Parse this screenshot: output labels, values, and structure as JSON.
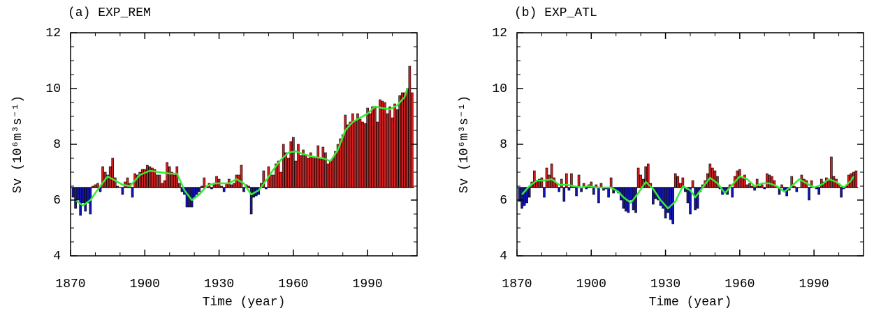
{
  "chart_data": [
    {
      "type": "bar",
      "title": "(a) EXP_REM",
      "xlabel": "Time (year)",
      "ylabel": "Sv (10⁶m³s⁻¹)",
      "x": [
        1871,
        1872,
        1873,
        1874,
        1875,
        1876,
        1877,
        1878,
        1879,
        1880,
        1881,
        1882,
        1883,
        1884,
        1885,
        1886,
        1887,
        1888,
        1889,
        1890,
        1891,
        1892,
        1893,
        1894,
        1895,
        1896,
        1897,
        1898,
        1899,
        1900,
        1901,
        1902,
        1903,
        1904,
        1905,
        1906,
        1907,
        1908,
        1909,
        1910,
        1911,
        1912,
        1913,
        1914,
        1915,
        1916,
        1917,
        1918,
        1919,
        1920,
        1921,
        1922,
        1923,
        1924,
        1925,
        1926,
        1927,
        1928,
        1929,
        1930,
        1931,
        1932,
        1933,
        1934,
        1935,
        1936,
        1937,
        1938,
        1939,
        1940,
        1941,
        1942,
        1943,
        1944,
        1945,
        1946,
        1947,
        1948,
        1949,
        1950,
        1951,
        1952,
        1953,
        1954,
        1955,
        1956,
        1957,
        1958,
        1959,
        1960,
        1961,
        1962,
        1963,
        1964,
        1965,
        1966,
        1967,
        1968,
        1969,
        1970,
        1971,
        1972,
        1973,
        1974,
        1975,
        1976,
        1977,
        1978,
        1979,
        1980,
        1981,
        1982,
        1983,
        1984,
        1985,
        1986,
        1987,
        1988,
        1989,
        1990,
        1991,
        1992,
        1993,
        1994,
        1995,
        1996,
        1997,
        1998,
        1999,
        2000,
        2001,
        2002,
        2003,
        2004,
        2005,
        2006,
        2007,
        2008
      ],
      "values": [
        6.1,
        5.7,
        6.0,
        5.45,
        5.9,
        5.6,
        5.9,
        5.5,
        6.5,
        6.55,
        6.6,
        6.3,
        7.2,
        7.0,
        6.9,
        7.2,
        7.5,
        6.8,
        6.5,
        6.45,
        6.2,
        6.65,
        6.8,
        6.6,
        6.1,
        6.95,
        6.9,
        7.0,
        7.1,
        7.1,
        7.25,
        7.2,
        7.15,
        7.1,
        6.9,
        6.9,
        6.6,
        6.7,
        7.35,
        7.2,
        7.0,
        6.9,
        7.2,
        6.6,
        6.3,
        6.2,
        5.75,
        5.75,
        5.75,
        6.1,
        6.2,
        6.3,
        6.5,
        6.8,
        6.5,
        6.6,
        6.4,
        6.55,
        6.85,
        6.75,
        6.5,
        6.3,
        6.6,
        6.75,
        6.55,
        6.6,
        6.9,
        6.9,
        7.25,
        6.3,
        6.55,
        6.5,
        5.5,
        6.1,
        6.15,
        6.2,
        6.6,
        7.05,
        6.4,
        7.2,
        6.9,
        6.9,
        7.3,
        7.4,
        7.0,
        8.0,
        7.7,
        7.5,
        8.1,
        8.25,
        7.4,
        8.0,
        7.6,
        7.8,
        7.6,
        7.5,
        7.7,
        7.55,
        7.55,
        7.95,
        7.5,
        7.9,
        7.7,
        7.3,
        7.4,
        7.5,
        7.75,
        8.0,
        8.2,
        8.35,
        9.05,
        8.7,
        8.8,
        9.1,
        8.85,
        9.1,
        8.9,
        8.8,
        8.75,
        9.3,
        9.1,
        9.35,
        9.35,
        8.8,
        9.6,
        9.55,
        9.5,
        9.1,
        9.35,
        8.95,
        9.45,
        9.25,
        9.75,
        9.85,
        9.85,
        10.0,
        10.8,
        9.85
      ],
      "baseline": 6.45,
      "positive_color": "#d02020",
      "negative_color": "#1414b4",
      "smooth": {
        "color": "#33ee33",
        "x": [
          1872,
          1875,
          1878,
          1882,
          1885,
          1888,
          1891,
          1894,
          1898,
          1902,
          1906,
          1910,
          1913,
          1916,
          1919,
          1922,
          1925,
          1928,
          1931,
          1934,
          1937,
          1940,
          1943,
          1946,
          1949,
          1952,
          1955,
          1958,
          1961,
          1964,
          1968,
          1972,
          1975,
          1978,
          1981,
          1984,
          1987,
          1990,
          1993,
          1996,
          1999,
          2002,
          2005,
          2006
        ],
        "values": [
          6.0,
          5.8,
          6.0,
          6.5,
          6.85,
          6.7,
          6.55,
          6.5,
          6.9,
          7.05,
          7.0,
          6.95,
          6.95,
          6.35,
          6.0,
          6.2,
          6.5,
          6.6,
          6.6,
          6.6,
          6.75,
          6.6,
          6.2,
          6.35,
          6.7,
          7.1,
          7.45,
          7.7,
          7.75,
          7.65,
          7.55,
          7.5,
          7.4,
          7.8,
          8.5,
          8.8,
          8.95,
          9.1,
          9.35,
          9.3,
          9.25,
          9.4,
          9.7,
          10.0
        ]
      },
      "xlim": [
        1870,
        2010
      ],
      "ylim": [
        4,
        12
      ],
      "xticks": [
        1870,
        1900,
        1930,
        1960,
        1990
      ],
      "yticks": [
        4,
        6,
        8,
        10,
        12
      ],
      "xminor": [
        1880,
        1890,
        1910,
        1920,
        1940,
        1950,
        1970,
        1980,
        2000
      ],
      "yminor": [
        4.5,
        5,
        5.5,
        6.5,
        7,
        7.5,
        8.5,
        9,
        9.5,
        10.5,
        11,
        11.5
      ]
    },
    {
      "type": "bar",
      "title": "(b) EXP_ATL",
      "xlabel": "Time (year)",
      "ylabel": "Sv (10⁶m³s⁻¹)",
      "x": [
        1871,
        1872,
        1873,
        1874,
        1875,
        1876,
        1877,
        1878,
        1879,
        1880,
        1881,
        1882,
        1883,
        1884,
        1885,
        1886,
        1887,
        1888,
        1889,
        1890,
        1891,
        1892,
        1893,
        1894,
        1895,
        1896,
        1897,
        1898,
        1899,
        1900,
        1901,
        1902,
        1903,
        1904,
        1905,
        1906,
        1907,
        1908,
        1909,
        1910,
        1911,
        1912,
        1913,
        1914,
        1915,
        1916,
        1917,
        1918,
        1919,
        1920,
        1921,
        1922,
        1923,
        1924,
        1925,
        1926,
        1927,
        1928,
        1929,
        1930,
        1931,
        1932,
        1933,
        1934,
        1935,
        1936,
        1937,
        1938,
        1939,
        1940,
        1941,
        1942,
        1943,
        1944,
        1945,
        1946,
        1947,
        1948,
        1949,
        1950,
        1951,
        1952,
        1953,
        1954,
        1955,
        1956,
        1957,
        1958,
        1959,
        1960,
        1961,
        1962,
        1963,
        1964,
        1965,
        1966,
        1967,
        1968,
        1969,
        1970,
        1971,
        1972,
        1973,
        1974,
        1975,
        1976,
        1977,
        1978,
        1979,
        1980,
        1981,
        1982,
        1983,
        1984,
        1985,
        1986,
        1987,
        1988,
        1989,
        1990,
        1991,
        1992,
        1993,
        1994,
        1995,
        1996,
        1997,
        1998,
        1999,
        2000,
        2001,
        2002,
        2003,
        2004,
        2005,
        2006,
        2007
      ],
      "values": [
        5.95,
        5.7,
        5.8,
        5.9,
        6.1,
        6.65,
        7.05,
        6.7,
        6.75,
        6.8,
        6.1,
        7.15,
        6.9,
        7.3,
        6.8,
        6.6,
        6.3,
        6.75,
        5.95,
        6.95,
        6.35,
        6.95,
        6.5,
        6.15,
        6.9,
        6.3,
        6.6,
        6.4,
        6.55,
        6.65,
        6.2,
        6.55,
        5.9,
        6.6,
        6.35,
        6.4,
        6.1,
        6.8,
        6.25,
        6.35,
        6.25,
        6.0,
        5.7,
        5.6,
        5.55,
        6.0,
        5.65,
        5.55,
        7.15,
        6.9,
        6.75,
        7.2,
        7.3,
        6.6,
        5.85,
        6.05,
        6.0,
        5.8,
        5.7,
        5.35,
        5.55,
        5.3,
        5.15,
        6.95,
        6.85,
        6.6,
        6.8,
        6.3,
        5.9,
        5.5,
        6.7,
        5.65,
        5.7,
        6.3,
        6.55,
        6.7,
        6.95,
        7.3,
        7.15,
        7.05,
        6.85,
        6.4,
        6.2,
        6.3,
        6.2,
        6.55,
        6.1,
        6.85,
        7.05,
        7.1,
        6.8,
        6.9,
        6.55,
        6.6,
        6.5,
        6.35,
        6.75,
        6.5,
        6.55,
        6.4,
        6.95,
        6.9,
        6.85,
        6.7,
        6.45,
        6.2,
        6.55,
        6.3,
        6.15,
        6.35,
        6.85,
        6.5,
        6.3,
        6.45,
        6.9,
        6.75,
        6.7,
        6.0,
        6.7,
        6.45,
        6.4,
        6.2,
        6.75,
        6.65,
        6.8,
        6.7,
        7.55,
        6.85,
        6.75,
        6.6,
        6.1,
        6.4,
        6.5,
        6.9,
        6.95,
        7.0,
        7.05
      ],
      "baseline": 6.45,
      "positive_color": "#d02020",
      "negative_color": "#1414b4",
      "smooth": {
        "color": "#33ee33",
        "x": [
          1872,
          1875,
          1878,
          1881,
          1884,
          1887,
          1890,
          1893,
          1896,
          1899,
          1902,
          1905,
          1908,
          1911,
          1913,
          1916,
          1919,
          1922,
          1925,
          1928,
          1931,
          1934,
          1937,
          1940,
          1942,
          1945,
          1948,
          1951,
          1954,
          1957,
          1960,
          1963,
          1966,
          1969,
          1972,
          1975,
          1978,
          1981,
          1984,
          1987,
          1990,
          1993,
          1996,
          1999,
          2002,
          2005,
          2006
        ],
        "values": [
          6.2,
          6.5,
          6.7,
          6.7,
          6.75,
          6.55,
          6.55,
          6.5,
          6.45,
          6.5,
          6.45,
          6.45,
          6.45,
          6.3,
          6.1,
          5.9,
          6.25,
          6.65,
          6.4,
          6.0,
          5.7,
          5.95,
          6.5,
          6.35,
          6.1,
          6.45,
          6.8,
          6.6,
          6.25,
          6.55,
          6.85,
          6.75,
          6.5,
          6.6,
          6.6,
          6.5,
          6.3,
          6.5,
          6.75,
          6.6,
          6.45,
          6.55,
          6.75,
          6.65,
          6.45,
          6.7,
          6.85
        ]
      },
      "xlim": [
        1870,
        2010
      ],
      "ylim": [
        4,
        12
      ],
      "xticks": [
        1870,
        1900,
        1930,
        1960,
        1990
      ],
      "yticks": [
        4,
        6,
        8,
        10,
        12
      ],
      "xminor": [
        1880,
        1890,
        1910,
        1920,
        1940,
        1950,
        1970,
        1980,
        2000
      ],
      "yminor": [
        4.5,
        5,
        5.5,
        6.5,
        7,
        7.5,
        8.5,
        9,
        9.5,
        10.5,
        11,
        11.5
      ]
    }
  ]
}
